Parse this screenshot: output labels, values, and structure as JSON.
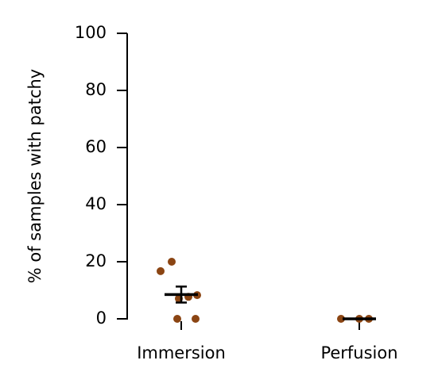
{
  "chart_data": {
    "type": "strip",
    "ylabel": "% of samples with patchy",
    "categories": [
      "Immersion",
      "Perfusion"
    ],
    "points": [
      [
        16.7,
        20,
        0,
        0,
        7.1,
        7.7,
        8.3
      ],
      [
        0,
        0,
        0
      ]
    ],
    "means": [
      8.5,
      0
    ],
    "errors": [
      2.8,
      0
    ],
    "color": "#8b4513",
    "ylim": [
      0,
      100
    ],
    "yticks": [
      0,
      20,
      40,
      60,
      80,
      100
    ]
  }
}
